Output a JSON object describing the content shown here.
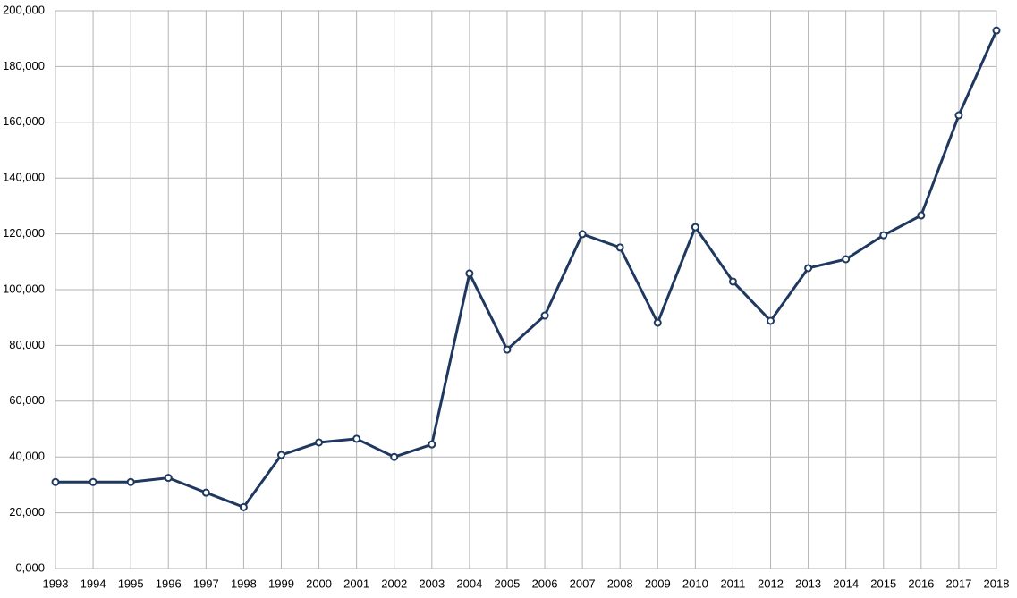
{
  "chart_data": {
    "type": "line",
    "x": [
      1993,
      1994,
      1995,
      1996,
      1997,
      1998,
      1999,
      2000,
      2001,
      2002,
      2003,
      2004,
      2005,
      2006,
      2007,
      2008,
      2009,
      2010,
      2011,
      2012,
      2013,
      2014,
      2015,
      2016,
      2017,
      2018
    ],
    "series": [
      {
        "color": "#1f3860",
        "values": [
          31000,
          31000,
          31000,
          32500,
          27200,
          22000,
          40700,
          45200,
          46500,
          40000,
          44500,
          105800,
          78500,
          90700,
          119900,
          115100,
          88100,
          122400,
          102900,
          88800,
          107700,
          110900,
          119500,
          126600,
          162500,
          192900
        ]
      }
    ],
    "xlim": [
      1993,
      2018
    ],
    "xticks": [
      1993,
      1994,
      1995,
      1996,
      1997,
      1998,
      1999,
      2000,
      2001,
      2002,
      2003,
      2004,
      2005,
      2006,
      2007,
      2008,
      2009,
      2010,
      2011,
      2012,
      2013,
      2014,
      2015,
      2016,
      2017,
      2018
    ],
    "ylim": [
      0,
      200000
    ],
    "yticks": [
      {
        "value": 0,
        "label": "0,000"
      },
      {
        "value": 20000,
        "label": "20,000"
      },
      {
        "value": 40000,
        "label": "40,000"
      },
      {
        "value": 60000,
        "label": "60,000"
      },
      {
        "value": 80000,
        "label": "80,000"
      },
      {
        "value": 100000,
        "label": "100,000"
      },
      {
        "value": 120000,
        "label": "120,000"
      },
      {
        "value": 140000,
        "label": "140,000"
      },
      {
        "value": 160000,
        "label": "160,000"
      },
      {
        "value": 180000,
        "label": "180,000"
      },
      {
        "value": 200000,
        "label": "200,000"
      }
    ],
    "grid": true
  }
}
